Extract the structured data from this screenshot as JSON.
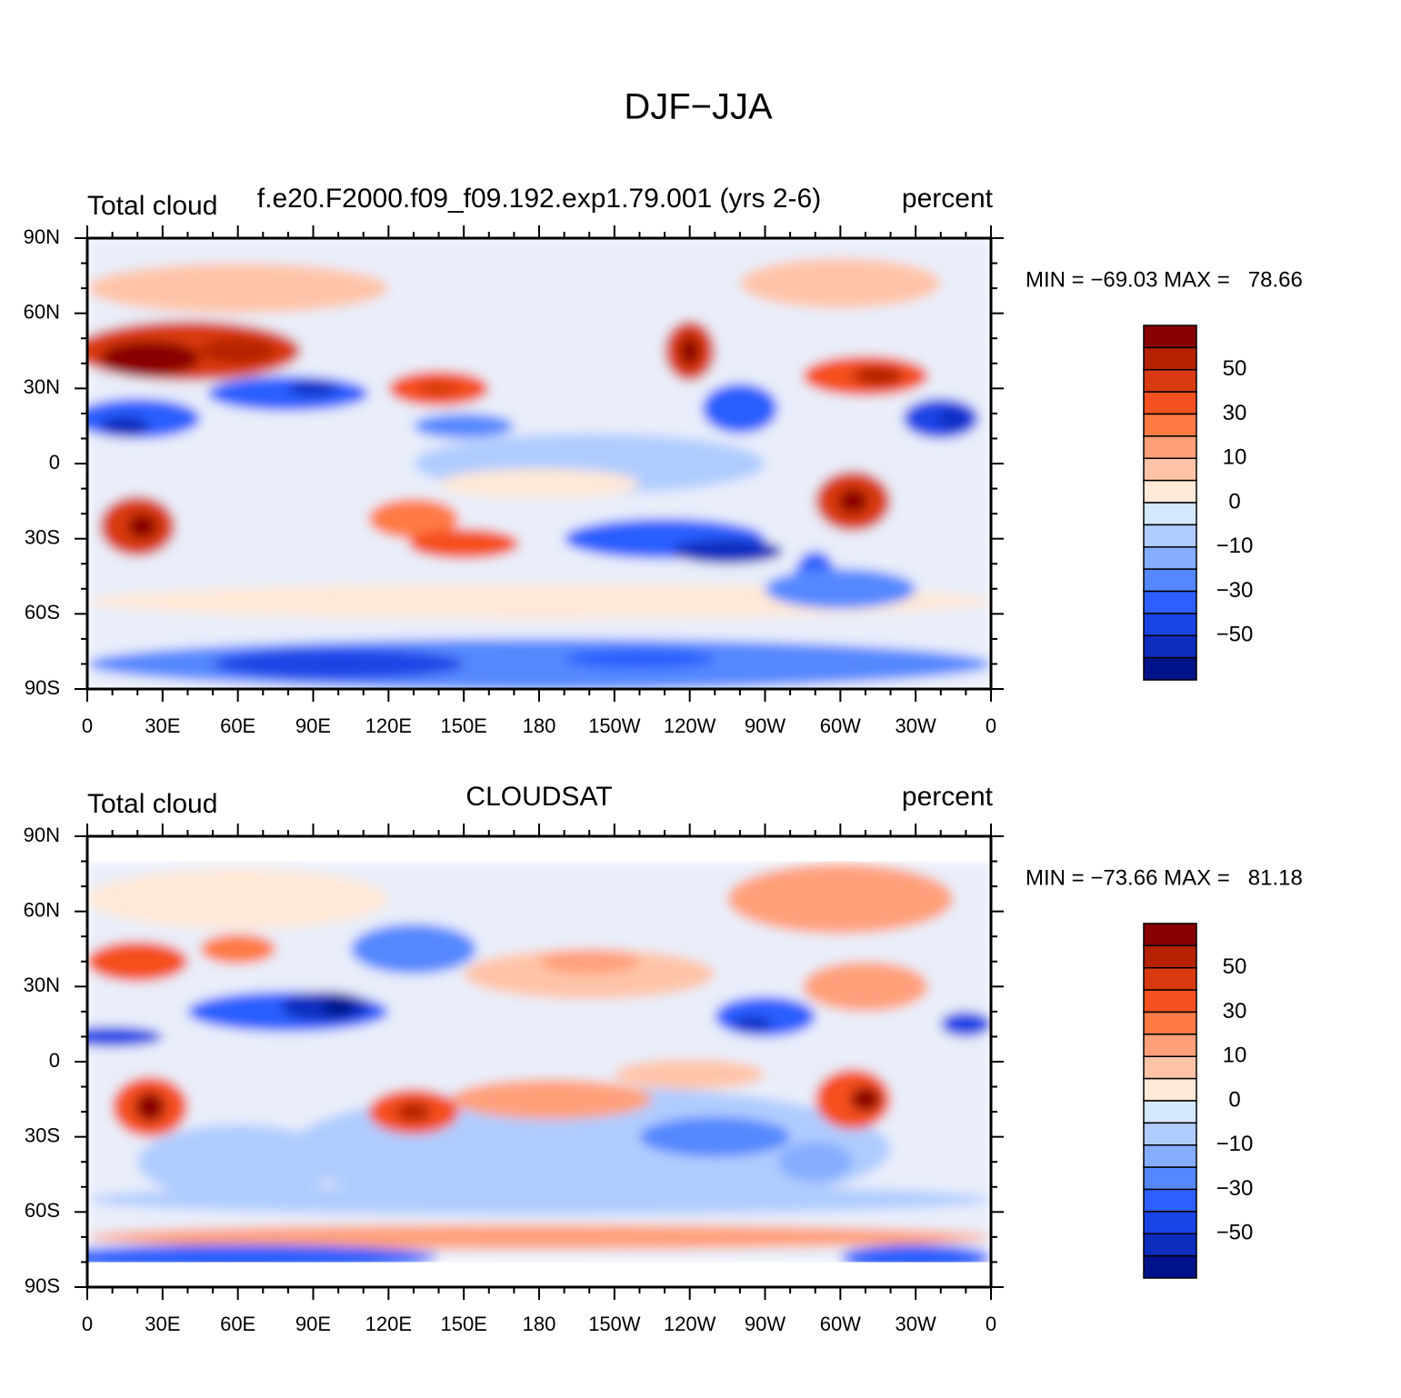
{
  "title": "DJF−JJA",
  "panels": [
    {
      "left": "Total cloud",
      "center": "f.e20.F2000.f09_f09.192.exp1.79.001 (yrs 2-6)",
      "right": "percent",
      "stats": "MIN = −69.03 MAX =   78.66"
    },
    {
      "left": "Total cloud",
      "center": "CLOUDSAT",
      "right": "percent",
      "stats": "MIN = −73.66 MAX =   81.18"
    }
  ],
  "xtick_labels": [
    "0",
    "30E",
    "60E",
    "90E",
    "120E",
    "150E",
    "180",
    "150W",
    "120W",
    "90W",
    "60W",
    "30W",
    "0"
  ],
  "ytick_labels": [
    "90N",
    "60N",
    "30N",
    "0",
    "30S",
    "60S",
    "90S"
  ],
  "colorbar": {
    "labels": [
      "50",
      "30",
      "10",
      "0",
      "−10",
      "−30",
      "−50"
    ],
    "colors": [
      "#8a0000",
      "#b52200",
      "#d93a0f",
      "#f5501f",
      "#ff7a45",
      "#ffa07a",
      "#ffc4a8",
      "#ffe8d6",
      "#d4e8ff",
      "#b0ccff",
      "#85adff",
      "#5588ff",
      "#2b5fff",
      "#1a45e6",
      "#0d2dbf",
      "#00128a"
    ]
  }
}
